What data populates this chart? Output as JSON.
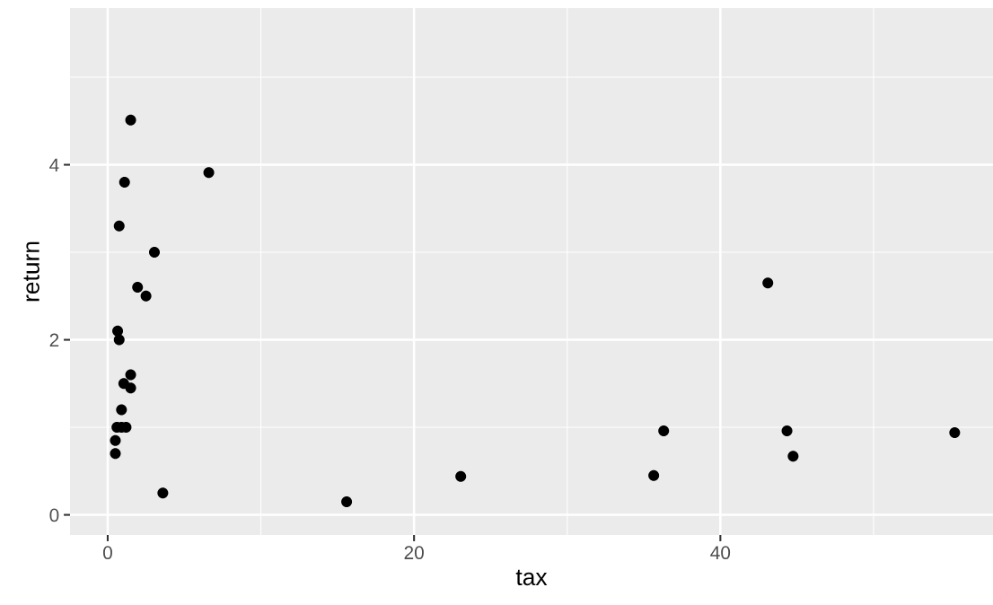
{
  "chart_data": {
    "type": "scatter",
    "xlabel": "tax",
    "ylabel": "return",
    "xlim": [
      -2.46,
      57.8
    ],
    "ylim": [
      -0.23,
      5.79
    ],
    "xticks": [
      0,
      20,
      40
    ],
    "yticks": [
      0,
      2,
      4
    ],
    "grid": true,
    "marker": "circle",
    "series": [
      {
        "color": "#000000",
        "x": [
          1.5,
          6.6,
          1.1,
          0.75,
          3.05,
          1.95,
          2.5,
          0.65,
          0.75,
          1.5,
          1.05,
          1.5,
          0.9,
          0.6,
          0.9,
          1.2,
          0.5,
          0.5,
          3.6,
          15.6,
          23.05,
          35.65,
          36.3,
          43.1,
          44.35,
          44.75,
          55.3
        ],
        "values": [
          4.51,
          3.91,
          3.8,
          3.3,
          3.0,
          2.6,
          2.5,
          2.1,
          2.0,
          1.6,
          1.5,
          1.45,
          1.2,
          1.0,
          1.0,
          1.0,
          0.85,
          0.7,
          0.25,
          0.15,
          0.44,
          0.45,
          0.96,
          2.65,
          0.96,
          0.67,
          0.94
        ]
      }
    ]
  }
}
